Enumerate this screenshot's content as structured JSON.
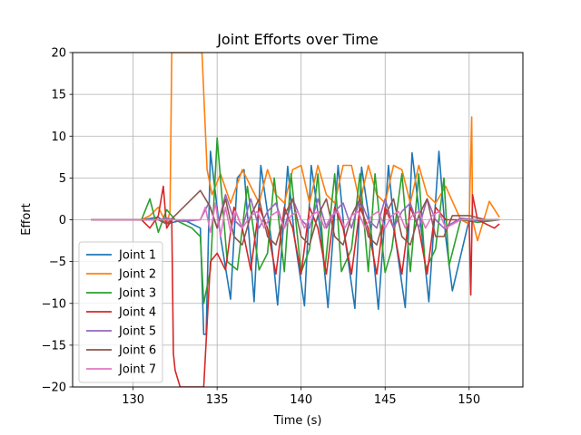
{
  "chart_data": {
    "type": "line",
    "title": "Joint Efforts over Time",
    "xlabel": "Time (s)",
    "ylabel": "Effort",
    "xlim": [
      126.4,
      153.2
    ],
    "ylim": [
      -20,
      20
    ],
    "xticks": [
      130,
      135,
      140,
      145,
      150
    ],
    "yticks": [
      -20,
      -15,
      -10,
      -5,
      0,
      5,
      10,
      15,
      20
    ],
    "grid": true,
    "legend_position": "lower-left",
    "series": [
      {
        "name": "Joint 1",
        "color": "#1f77b4",
        "x": [
          127.5,
          130.5,
          131.5,
          132.0,
          133.0,
          134.0,
          134.2,
          134.35,
          134.6,
          135.2,
          135.8,
          136.2,
          136.6,
          137.2,
          137.6,
          138.2,
          138.6,
          139.2,
          139.6,
          140.2,
          140.6,
          141.2,
          141.6,
          142.2,
          142.6,
          143.2,
          143.6,
          144.2,
          144.6,
          145.2,
          145.6,
          146.2,
          146.6,
          147.2,
          147.6,
          148.2,
          148.6,
          149.0,
          150.0,
          151.0,
          151.8
        ],
        "y": [
          0,
          0,
          0.3,
          -0.5,
          0,
          -1,
          -13.7,
          -13.7,
          8.2,
          -2,
          -9.5,
          5,
          6,
          -9.8,
          6.5,
          -2,
          -10.2,
          6.4,
          -2,
          -10.3,
          6.5,
          -2,
          -10.5,
          6.5,
          -2,
          -10.6,
          6.3,
          -2,
          -10.7,
          6.5,
          -2,
          -10.5,
          8,
          -2,
          -9.8,
          8.2,
          -2,
          -8.5,
          0,
          -0.2,
          0
        ]
      },
      {
        "name": "Joint 2",
        "color": "#ff7f0e",
        "x": [
          127.5,
          130.5,
          131.0,
          131.5,
          132.0,
          132.2,
          132.3,
          134.1,
          134.4,
          134.7,
          135.2,
          135.8,
          136.5,
          137.0,
          137.5,
          138.0,
          138.5,
          139.0,
          139.5,
          140.0,
          140.5,
          141.0,
          141.5,
          142.0,
          142.5,
          143.0,
          143.5,
          144.0,
          144.5,
          145.0,
          145.5,
          146.0,
          146.5,
          147.0,
          147.5,
          148.0,
          148.6,
          149.5,
          150.0,
          150.15,
          150.2,
          150.5,
          151.2,
          151.8
        ],
        "y": [
          0,
          0,
          0.5,
          1.5,
          -0.5,
          1,
          20,
          20,
          6,
          3,
          5.5,
          2,
          6,
          4,
          2,
          6,
          3,
          2,
          6,
          6.5,
          2,
          6.5,
          3,
          2,
          6.5,
          6.5,
          2,
          6.5,
          3,
          2,
          6.5,
          6,
          2,
          6.5,
          3,
          2,
          4,
          0,
          -0.5,
          12.3,
          0,
          -2.5,
          2.2,
          0.3
        ]
      },
      {
        "name": "Joint 3",
        "color": "#2ca02c",
        "x": [
          127.5,
          130.5,
          131.0,
          131.5,
          132.0,
          132.5,
          133.0,
          133.5,
          134.0,
          134.2,
          134.6,
          135.0,
          135.6,
          136.2,
          136.8,
          137.5,
          138.0,
          138.4,
          139.0,
          139.4,
          140.0,
          140.5,
          141.0,
          141.4,
          142.0,
          142.4,
          143.0,
          143.5,
          144.0,
          144.4,
          145.0,
          145.4,
          146.0,
          146.5,
          147.0,
          147.4,
          148.0,
          148.5,
          148.8,
          149.5,
          150.5,
          151.8
        ],
        "y": [
          0,
          0,
          2.5,
          -1.5,
          1.2,
          0,
          -0.5,
          -1,
          -2,
          -10,
          -6,
          9.8,
          -5,
          -6,
          4,
          -6,
          -4,
          5,
          -6.2,
          5.5,
          -6.3,
          -3.5,
          5.5,
          -6.2,
          5.5,
          -6.2,
          -3.5,
          5.5,
          -6.2,
          5.5,
          -6.3,
          -3.5,
          5.5,
          -6.2,
          5.5,
          -6.0,
          -3.5,
          5.0,
          -5.5,
          0,
          -0.3,
          0
        ]
      },
      {
        "name": "Joint 4",
        "color": "#d62728",
        "x": [
          127.5,
          130.5,
          131.0,
          131.5,
          131.8,
          132.0,
          132.3,
          132.4,
          132.5,
          132.8,
          133.2,
          133.6,
          134.2,
          134.6,
          135.0,
          135.5,
          136.0,
          136.5,
          137.0,
          137.5,
          138.0,
          138.5,
          139.0,
          139.5,
          140.0,
          140.5,
          141.0,
          141.5,
          142.0,
          142.5,
          143.0,
          143.5,
          144.0,
          144.5,
          145.0,
          145.5,
          146.0,
          146.5,
          147.0,
          147.5,
          148.0,
          148.6,
          149.5,
          150.0,
          150.1,
          150.2,
          150.5,
          151.5,
          151.8
        ],
        "y": [
          0,
          0,
          -1,
          0.5,
          4,
          -1,
          0,
          -16,
          -18,
          -20,
          -20,
          -20,
          -20,
          -5,
          -4,
          -6,
          1.5,
          -1,
          -6,
          1.5,
          -1,
          -6.5,
          1.5,
          -1,
          -6.5,
          1.5,
          -1,
          -6.5,
          1.5,
          -1,
          -6.5,
          1.5,
          -1,
          -6.5,
          1.5,
          -1,
          -6.5,
          1.5,
          -1,
          -6.5,
          1.5,
          0,
          0,
          0,
          -9,
          3,
          0,
          -1,
          -0.5
        ]
      },
      {
        "name": "Joint 5",
        "color": "#9467bd",
        "x": [
          127.5,
          130.5,
          131.5,
          132.0,
          133.0,
          134.0,
          134.5,
          135.0,
          135.5,
          136.0,
          136.5,
          137.0,
          137.5,
          138.0,
          138.5,
          139.0,
          139.5,
          140.0,
          140.5,
          141.0,
          141.5,
          142.0,
          142.5,
          143.0,
          143.5,
          144.0,
          144.5,
          145.0,
          145.5,
          146.0,
          146.5,
          147.0,
          147.5,
          148.0,
          148.5,
          149.5,
          150.5,
          151.8
        ],
        "y": [
          0,
          0,
          0,
          0.2,
          -0.2,
          0,
          2,
          -1,
          3,
          0,
          -1,
          2.5,
          -1,
          1,
          2,
          -1,
          2.5,
          0,
          -1,
          2.5,
          -1,
          1,
          2,
          -1,
          2.5,
          0,
          -1,
          2.5,
          -1,
          1,
          2,
          -1,
          2.5,
          0,
          -1,
          0.2,
          0,
          0
        ]
      },
      {
        "name": "Joint 6",
        "color": "#8c564b",
        "x": [
          127.5,
          130.5,
          131.5,
          132.0,
          133.0,
          133.5,
          134.0,
          134.6,
          135.0,
          135.5,
          136.0,
          136.5,
          137.0,
          137.5,
          138.0,
          138.5,
          139.0,
          139.5,
          140.0,
          140.5,
          141.0,
          141.5,
          142.0,
          142.5,
          143.0,
          143.5,
          144.0,
          144.5,
          145.0,
          145.5,
          146.0,
          146.5,
          147.0,
          147.5,
          148.0,
          148.5,
          149.0,
          150.0,
          151.0,
          151.8
        ],
        "y": [
          0,
          0,
          0,
          -0.5,
          1.5,
          2.5,
          3.5,
          1.5,
          -1,
          2.5,
          -2,
          -3,
          0.5,
          2.5,
          -2,
          -3,
          0.5,
          2.5,
          -2,
          -3,
          0.5,
          2.5,
          -2,
          -3,
          0.5,
          2.5,
          -2,
          -3,
          0.5,
          2.5,
          -2,
          -3,
          0.5,
          2.5,
          -2,
          -2,
          0.5,
          0.5,
          0,
          0
        ]
      },
      {
        "name": "Joint 7",
        "color": "#e377c2",
        "x": [
          127.5,
          130.5,
          131.5,
          132.0,
          133.0,
          134.0,
          134.3,
          134.6,
          134.9,
          135.2,
          135.5,
          135.8,
          136.1,
          136.5,
          137.0,
          137.4,
          137.8,
          138.2,
          138.6,
          139.0,
          139.4,
          139.8,
          140.2,
          140.6,
          141.0,
          141.4,
          141.8,
          142.2,
          142.6,
          143.0,
          143.4,
          143.8,
          144.2,
          144.6,
          145.0,
          145.4,
          145.8,
          146.2,
          146.6,
          147.0,
          147.4,
          147.8,
          148.2,
          148.6,
          149.5,
          150.5,
          151.8
        ],
        "y": [
          0,
          0,
          0,
          0,
          0,
          0,
          1.5,
          -1.5,
          2,
          -2,
          1.5,
          -1.5,
          1,
          -1,
          0.5,
          1,
          -1,
          0.5,
          1,
          -1,
          0.5,
          1,
          -1,
          0.5,
          1,
          -1,
          0.5,
          1,
          -1,
          0.5,
          1,
          -1,
          0.5,
          1,
          -1,
          0.5,
          1,
          -1,
          0.5,
          1,
          -1,
          0.5,
          1,
          -1,
          0,
          0,
          0
        ]
      }
    ]
  }
}
